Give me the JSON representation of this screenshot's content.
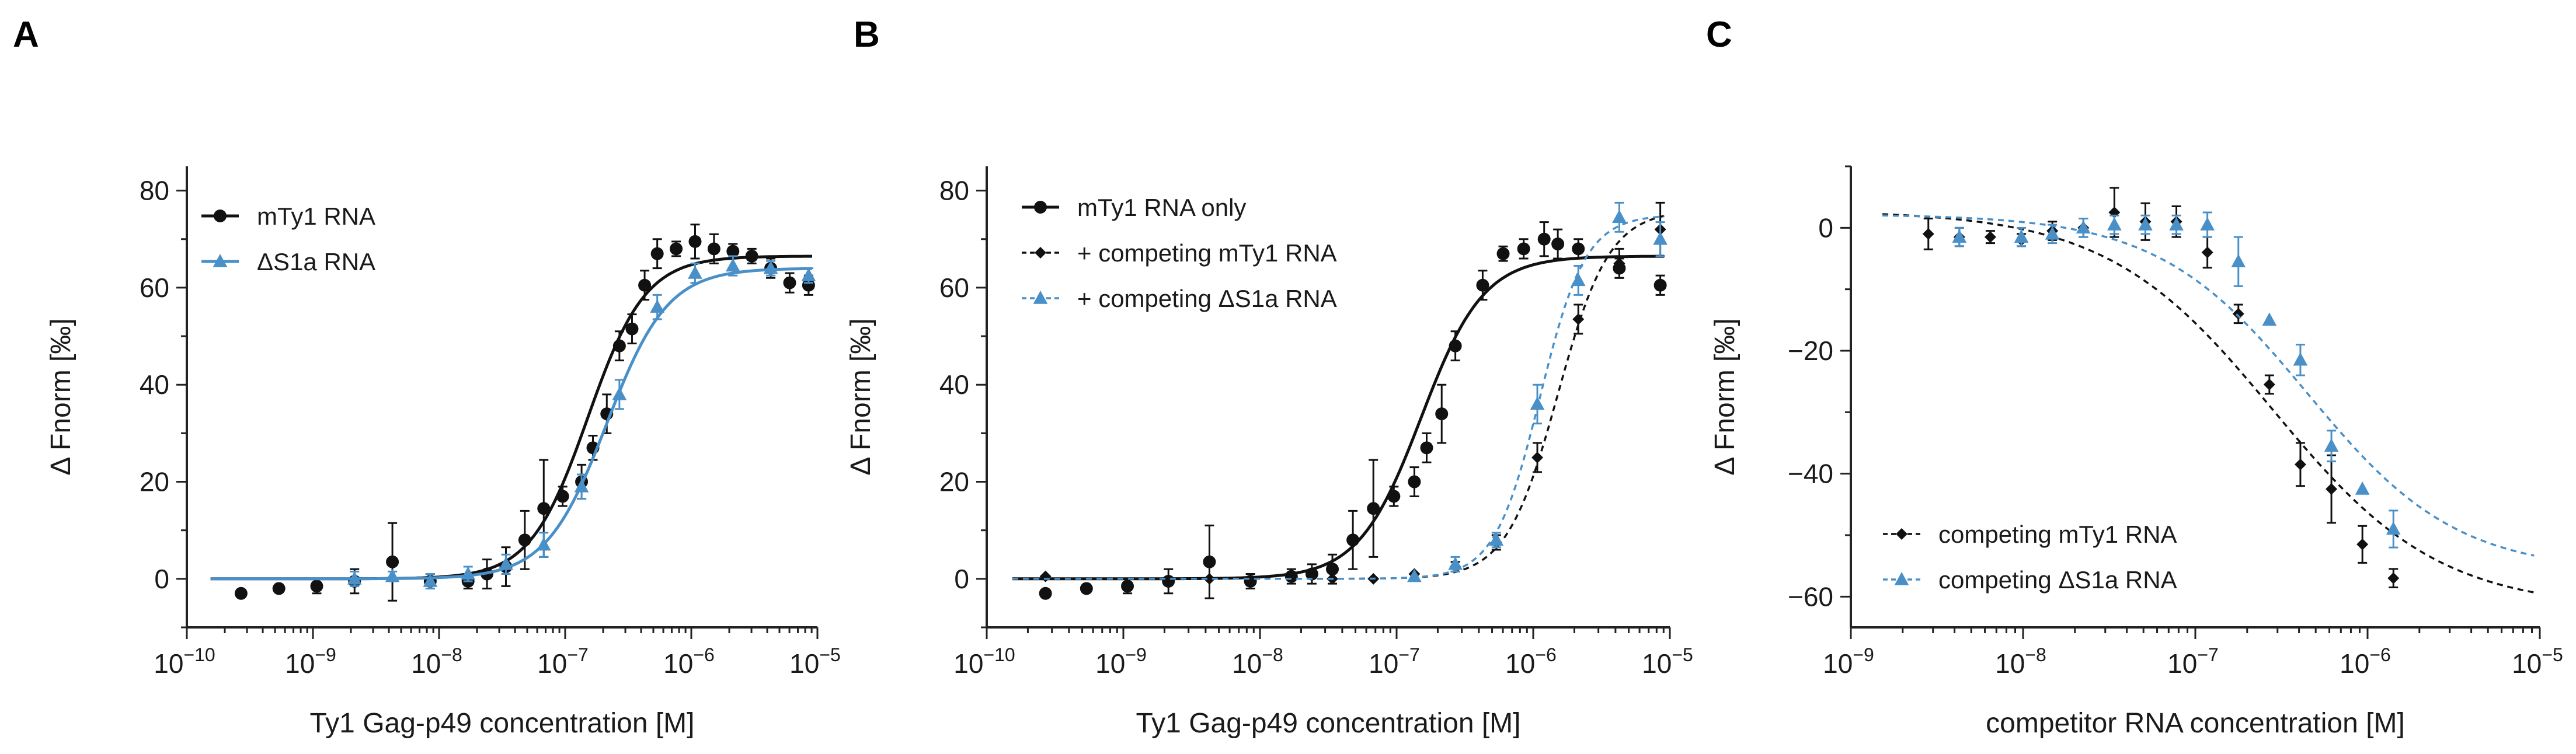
{
  "figure": {
    "colors": {
      "black": "#111111",
      "blue": "#4a90c8"
    }
  },
  "chart_data": [
    {
      "panel": "A",
      "type": "scatter",
      "xscale": "log",
      "xlim": [
        -10,
        -5
      ],
      "ylim": [
        -10,
        85
      ],
      "xlabel": "Ty1 Gag-p49 concentration [M]",
      "ylabel": "Δ Fnorm [‰]",
      "xticks": [
        {
          "exp": -10,
          "base": "10",
          "sup": "−10"
        },
        {
          "exp": -9,
          "base": "10",
          "sup": "−9"
        },
        {
          "exp": -8,
          "base": "10",
          "sup": "−8"
        },
        {
          "exp": -7,
          "base": "10",
          "sup": "−7"
        },
        {
          "exp": -6,
          "base": "10",
          "sup": "−6"
        },
        {
          "exp": -5,
          "base": "10",
          "sup": "−5"
        }
      ],
      "yticks": [
        {
          "v": 0,
          "label": "0"
        },
        {
          "v": 20,
          "label": "20"
        },
        {
          "v": 40,
          "label": "40"
        },
        {
          "v": 60,
          "label": "60"
        },
        {
          "v": 80,
          "label": "80"
        }
      ],
      "legend": {
        "position": "top-left"
      },
      "series": [
        {
          "name": "mTy1 RNA",
          "color": "black",
          "marker": "circle",
          "line": "solid",
          "fit": {
            "bottom": 0,
            "top": 66.5,
            "log_ec50": -6.82,
            "hill": 1.9
          },
          "points": [
            {
              "lx": -9.57,
              "y": -3.0,
              "e": 0
            },
            {
              "lx": -9.27,
              "y": -2.0,
              "e": 0
            },
            {
              "lx": -8.97,
              "y": -1.5,
              "e": 1.5
            },
            {
              "lx": -8.67,
              "y": -0.5,
              "e": 2.5
            },
            {
              "lx": -8.37,
              "y": 3.5,
              "e": 8.0
            },
            {
              "lx": -8.07,
              "y": -0.5,
              "e": 1.5
            },
            {
              "lx": -7.77,
              "y": -0.5,
              "e": 1.5
            },
            {
              "lx": -7.62,
              "y": 1.0,
              "e": 3.0
            },
            {
              "lx": -7.47,
              "y": 2.5,
              "e": 4.0
            },
            {
              "lx": -7.32,
              "y": 8.0,
              "e": 6.0
            },
            {
              "lx": -7.17,
              "y": 14.5,
              "e": 10.0
            },
            {
              "lx": -7.02,
              "y": 17.0,
              "e": 2.0
            },
            {
              "lx": -6.87,
              "y": 20.0,
              "e": 3.5
            },
            {
              "lx": -6.78,
              "y": 27.0,
              "e": 2.5
            },
            {
              "lx": -6.67,
              "y": 34.0,
              "e": 4.0
            },
            {
              "lx": -6.57,
              "y": 48.0,
              "e": 3.0
            },
            {
              "lx": -6.47,
              "y": 51.5,
              "e": 3.0
            },
            {
              "lx": -6.37,
              "y": 60.5,
              "e": 3.0
            },
            {
              "lx": -6.27,
              "y": 67.0,
              "e": 3.0
            },
            {
              "lx": -6.12,
              "y": 68.0,
              "e": 1.5
            },
            {
              "lx": -5.97,
              "y": 69.5,
              "e": 3.5
            },
            {
              "lx": -5.82,
              "y": 68.0,
              "e": 3.0
            },
            {
              "lx": -5.67,
              "y": 67.5,
              "e": 1.5
            },
            {
              "lx": -5.52,
              "y": 66.5,
              "e": 1.5
            },
            {
              "lx": -5.37,
              "y": 64.0,
              "e": 2.0
            },
            {
              "lx": -5.22,
              "y": 61.0,
              "e": 2.0
            },
            {
              "lx": -5.07,
              "y": 60.5,
              "e": 2.0
            }
          ]
        },
        {
          "name": "ΔS1a RNA",
          "color": "blue",
          "marker": "triangle",
          "line": "solid",
          "fit": {
            "bottom": 0,
            "top": 64.0,
            "log_ec50": -6.67,
            "hill": 1.8
          },
          "points": [
            {
              "lx": -8.67,
              "y": 0.0,
              "e": 1.5
            },
            {
              "lx": -8.37,
              "y": 0.5,
              "e": 1.0
            },
            {
              "lx": -8.07,
              "y": -0.5,
              "e": 1.5
            },
            {
              "lx": -7.77,
              "y": 1.0,
              "e": 1.5
            },
            {
              "lx": -7.47,
              "y": 3.0,
              "e": 2.0
            },
            {
              "lx": -7.17,
              "y": 7.0,
              "e": 2.5
            },
            {
              "lx": -6.87,
              "y": 19.0,
              "e": 2.5
            },
            {
              "lx": -6.57,
              "y": 38.0,
              "e": 3.0
            },
            {
              "lx": -6.27,
              "y": 56.0,
              "e": 2.5
            },
            {
              "lx": -5.97,
              "y": 63.0,
              "e": 2.0
            },
            {
              "lx": -5.67,
              "y": 64.5,
              "e": 2.0
            },
            {
              "lx": -5.37,
              "y": 64.0,
              "e": 1.5
            },
            {
              "lx": -5.07,
              "y": 62.5,
              "e": 1.5
            }
          ]
        }
      ]
    },
    {
      "panel": "B",
      "type": "scatter",
      "xscale": "log",
      "xlim": [
        -10,
        -5
      ],
      "ylim": [
        -10,
        85
      ],
      "xlabel": "Ty1 Gag-p49 concentration [M]",
      "ylabel": "Δ Fnorm [‰]",
      "xticks": [
        {
          "exp": -10,
          "base": "10",
          "sup": "−10"
        },
        {
          "exp": -9,
          "base": "10",
          "sup": "−9"
        },
        {
          "exp": -8,
          "base": "10",
          "sup": "−8"
        },
        {
          "exp": -7,
          "base": "10",
          "sup": "−7"
        },
        {
          "exp": -6,
          "base": "10",
          "sup": "−6"
        },
        {
          "exp": -5,
          "base": "10",
          "sup": "−5"
        }
      ],
      "yticks": [
        {
          "v": 0,
          "label": "0"
        },
        {
          "v": 20,
          "label": "20"
        },
        {
          "v": 40,
          "label": "40"
        },
        {
          "v": 60,
          "label": "60"
        },
        {
          "v": 80,
          "label": "80"
        }
      ],
      "legend": {
        "position": "top-left"
      },
      "series": [
        {
          "name": "mTy1 RNA only",
          "color": "black",
          "marker": "circle",
          "line": "solid",
          "fit": {
            "bottom": 0,
            "top": 66.5,
            "log_ec50": -6.82,
            "hill": 1.9
          },
          "points": [
            {
              "lx": -9.57,
              "y": -3.0,
              "e": 0
            },
            {
              "lx": -9.27,
              "y": -2.0,
              "e": 0
            },
            {
              "lx": -8.97,
              "y": -1.5,
              "e": 1.5
            },
            {
              "lx": -8.67,
              "y": -0.5,
              "e": 2.5
            },
            {
              "lx": -8.37,
              "y": 3.5,
              "e": 7.5
            },
            {
              "lx": -8.07,
              "y": -0.5,
              "e": 1.5
            },
            {
              "lx": -7.77,
              "y": 0.5,
              "e": 1.5
            },
            {
              "lx": -7.62,
              "y": 1.0,
              "e": 2.0
            },
            {
              "lx": -7.47,
              "y": 2.0,
              "e": 3.0
            },
            {
              "lx": -7.32,
              "y": 8.0,
              "e": 6.0
            },
            {
              "lx": -7.17,
              "y": 14.5,
              "e": 10.0
            },
            {
              "lx": -7.02,
              "y": 17.0,
              "e": 2.0
            },
            {
              "lx": -6.87,
              "y": 20.0,
              "e": 3.0
            },
            {
              "lx": -6.78,
              "y": 27.0,
              "e": 3.0
            },
            {
              "lx": -6.67,
              "y": 34.0,
              "e": 6.0
            },
            {
              "lx": -6.57,
              "y": 48.0,
              "e": 3.0
            },
            {
              "lx": -6.37,
              "y": 60.5,
              "e": 3.0
            },
            {
              "lx": -6.22,
              "y": 67.0,
              "e": 1.5
            },
            {
              "lx": -6.07,
              "y": 68.0,
              "e": 2.0
            },
            {
              "lx": -5.92,
              "y": 70.0,
              "e": 3.5
            },
            {
              "lx": -5.82,
              "y": 69.0,
              "e": 3.0
            },
            {
              "lx": -5.67,
              "y": 68.0,
              "e": 2.0
            },
            {
              "lx": -5.37,
              "y": 64.0,
              "e": 2.0
            },
            {
              "lx": -5.07,
              "y": 60.5,
              "e": 2.0
            }
          ]
        },
        {
          "name": "+ competing mTy1 RNA",
          "color": "black",
          "marker": "diamond",
          "line": "dashed",
          "fit": {
            "bottom": 0,
            "top": 76.0,
            "log_ec50": -5.82,
            "hill": 2.3
          },
          "points": [
            {
              "lx": -9.57,
              "y": 0.5,
              "e": 0
            },
            {
              "lx": -8.37,
              "y": 0.0,
              "e": 0
            },
            {
              "lx": -7.77,
              "y": 0.5,
              "e": 0
            },
            {
              "lx": -7.47,
              "y": 0.0,
              "e": 0
            },
            {
              "lx": -7.17,
              "y": 0.0,
              "e": 0
            },
            {
              "lx": -6.87,
              "y": 1.0,
              "e": 0
            },
            {
              "lx": -6.57,
              "y": 2.5,
              "e": 1.0
            },
            {
              "lx": -6.27,
              "y": 7.5,
              "e": 1.5
            },
            {
              "lx": -5.97,
              "y": 25.0,
              "e": 3.0
            },
            {
              "lx": -5.67,
              "y": 53.5,
              "e": 3.0
            },
            {
              "lx": -5.37,
              "y": 65.0,
              "e": 3.0
            },
            {
              "lx": -5.07,
              "y": 72.0,
              "e": 5.5
            }
          ]
        },
        {
          "name": "+ competing ΔS1a RNA",
          "color": "blue",
          "marker": "triangle",
          "line": "dashed",
          "fit": {
            "bottom": 0,
            "top": 75.0,
            "log_ec50": -5.95,
            "hill": 2.6
          },
          "points": [
            {
              "lx": -6.87,
              "y": 0.5,
              "e": 0
            },
            {
              "lx": -6.57,
              "y": 3.0,
              "e": 1.5
            },
            {
              "lx": -6.27,
              "y": 8.0,
              "e": 1.5
            },
            {
              "lx": -5.97,
              "y": 36.0,
              "e": 4.0
            },
            {
              "lx": -5.67,
              "y": 61.5,
              "e": 3.0
            },
            {
              "lx": -5.37,
              "y": 74.5,
              "e": 3.0
            },
            {
              "lx": -5.07,
              "y": 70.0,
              "e": 3.5
            }
          ]
        }
      ]
    },
    {
      "panel": "C",
      "type": "scatter",
      "xscale": "log",
      "xlim": [
        -9,
        -5
      ],
      "ylim": [
        -65,
        10
      ],
      "xlabel": "competitor RNA concentration [M]",
      "ylabel": "Δ Fnorm [‰]",
      "xticks": [
        {
          "exp": -9,
          "base": "10",
          "sup": "−9"
        },
        {
          "exp": -8,
          "base": "10",
          "sup": "−8"
        },
        {
          "exp": -7,
          "base": "10",
          "sup": "−7"
        },
        {
          "exp": -6,
          "base": "10",
          "sup": "−6"
        },
        {
          "exp": -5,
          "base": "10",
          "sup": "−5"
        }
      ],
      "yticks": [
        {
          "v": 0,
          "label": "0"
        },
        {
          "v": -20,
          "label": "−20"
        },
        {
          "v": -40,
          "label": "−40"
        },
        {
          "v": -60,
          "label": "−60"
        }
      ],
      "legend": {
        "position": "bottom-left"
      },
      "series": [
        {
          "name": "competing mTy1 RNA",
          "color": "black",
          "marker": "diamond",
          "line": "dashed",
          "fit": {
            "bottom": 2.8,
            "top": -62.0,
            "log_ec50": -6.55,
            "hill": 0.9
          },
          "points": [
            {
              "lx": -8.55,
              "y": -1.0,
              "e": 2.5
            },
            {
              "lx": -8.37,
              "y": -1.5,
              "e": 1.5
            },
            {
              "lx": -8.19,
              "y": -1.5,
              "e": 1.0
            },
            {
              "lx": -8.01,
              "y": -2.0,
              "e": 1.0
            },
            {
              "lx": -7.83,
              "y": -0.5,
              "e": 1.5
            },
            {
              "lx": -7.65,
              "y": 0.0,
              "e": 1.5
            },
            {
              "lx": -7.47,
              "y": 2.5,
              "e": 4.0
            },
            {
              "lx": -7.29,
              "y": 1.0,
              "e": 3.0
            },
            {
              "lx": -7.11,
              "y": 1.0,
              "e": 2.5
            },
            {
              "lx": -6.93,
              "y": -4.0,
              "e": 2.5
            },
            {
              "lx": -6.75,
              "y": -14.0,
              "e": 1.5
            },
            {
              "lx": -6.57,
              "y": -25.5,
              "e": 1.5
            },
            {
              "lx": -6.39,
              "y": -38.5,
              "e": 3.5
            },
            {
              "lx": -6.21,
              "y": -42.5,
              "e": 5.5
            },
            {
              "lx": -6.03,
              "y": -51.5,
              "e": 3.0
            },
            {
              "lx": -5.85,
              "y": -57.0,
              "e": 1.5
            }
          ]
        },
        {
          "name": "competing ΔS1a RNA",
          "color": "blue",
          "marker": "triangle",
          "line": "dashed",
          "fit": {
            "bottom": 2.2,
            "top": -56.0,
            "log_ec50": -6.35,
            "hill": 1.0
          },
          "points": [
            {
              "lx": -8.37,
              "y": -1.5,
              "e": 1.5
            },
            {
              "lx": -8.01,
              "y": -1.5,
              "e": 1.5
            },
            {
              "lx": -7.83,
              "y": -1.0,
              "e": 1.5
            },
            {
              "lx": -7.65,
              "y": 0.0,
              "e": 1.5
            },
            {
              "lx": -7.47,
              "y": 0.5,
              "e": 1.5
            },
            {
              "lx": -7.29,
              "y": 0.5,
              "e": 1.5
            },
            {
              "lx": -7.11,
              "y": 0.5,
              "e": 1.5
            },
            {
              "lx": -6.93,
              "y": 0.5,
              "e": 2.0
            },
            {
              "lx": -6.75,
              "y": -5.5,
              "e": 4.0
            },
            {
              "lx": -6.57,
              "y": -15.0,
              "e": 0
            },
            {
              "lx": -6.39,
              "y": -21.5,
              "e": 2.5
            },
            {
              "lx": -6.21,
              "y": -35.5,
              "e": 2.5
            },
            {
              "lx": -6.03,
              "y": -42.5,
              "e": 0
            },
            {
              "lx": -5.85,
              "y": -49.0,
              "e": 3.0
            }
          ]
        }
      ]
    }
  ]
}
